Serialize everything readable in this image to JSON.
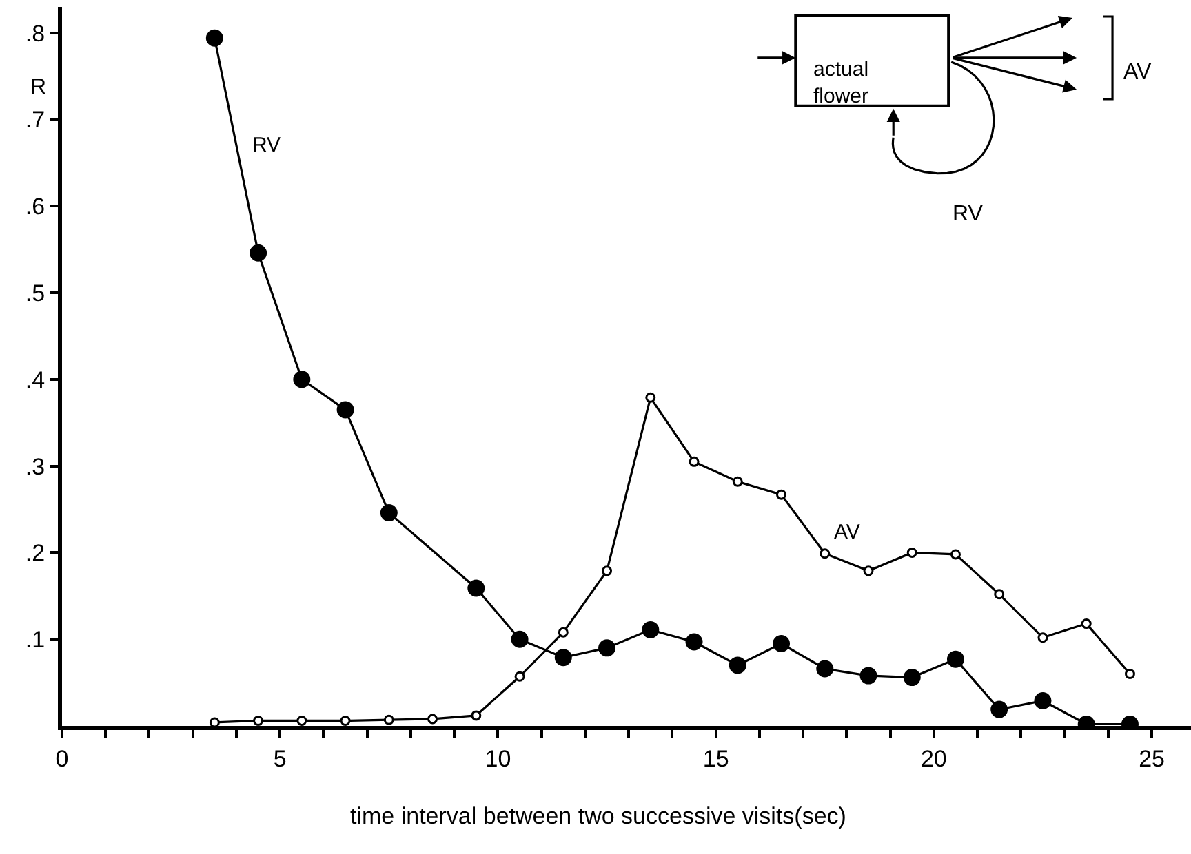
{
  "chart_data": {
    "type": "line",
    "xlabel": "time interval between two successive visits(sec)",
    "ylabel": "R",
    "xlim": [
      0,
      25.9
    ],
    "ylim": [
      0,
      0.83
    ],
    "xticks": [
      0,
      {
        "value": 1,
        "label": null
      },
      {
        "value": 2,
        "label": null
      },
      {
        "value": 3,
        "label": null
      },
      {
        "value": 4,
        "label": null
      },
      5,
      {
        "value": 6,
        "label": null
      },
      {
        "value": 7,
        "label": null
      },
      {
        "value": 8,
        "label": null
      },
      {
        "value": 9,
        "label": null
      },
      10,
      {
        "value": 11,
        "label": null
      },
      {
        "value": 12,
        "label": null
      },
      {
        "value": 13,
        "label": null
      },
      {
        "value": 14,
        "label": null
      },
      15,
      {
        "value": 16,
        "label": null
      },
      {
        "value": 17,
        "label": null
      },
      {
        "value": 18,
        "label": null
      },
      {
        "value": 19,
        "label": null
      },
      20,
      {
        "value": 21,
        "label": null
      },
      {
        "value": 22,
        "label": null
      },
      {
        "value": 23,
        "label": null
      },
      {
        "value": 24,
        "label": null
      },
      25
    ],
    "yticks": [
      {
        "value": 0.1,
        "label": ".1"
      },
      {
        "value": 0.2,
        "label": ".2"
      },
      {
        "value": 0.3,
        "label": ".3"
      },
      {
        "value": 0.4,
        "label": ".4"
      },
      {
        "value": 0.5,
        "label": ".5"
      },
      {
        "value": 0.6,
        "label": ".6"
      },
      {
        "value": 0.7,
        "label": ".7"
      },
      {
        "value": 0.8,
        "label": ".8"
      }
    ],
    "grid": false,
    "legend": false,
    "line_style": "solid",
    "series": [
      {
        "name": "RV",
        "color": "#000000",
        "marker": "circle",
        "x": [
          3.5,
          4.5,
          5.5,
          6.5,
          7.5,
          9.5,
          10.5,
          11.5,
          12.5,
          13.5,
          14.5,
          15.5,
          16.5,
          17.5,
          18.5,
          19.5,
          20.5,
          21.5,
          22.5,
          23.5,
          24.5
        ],
        "values": [
          0.794,
          0.546,
          0.4,
          0.365,
          0.246,
          0.159,
          0.1,
          0.079,
          0.09,
          0.111,
          0.097,
          0.07,
          0.095,
          0.066,
          0.058,
          0.056,
          0.077,
          0.019,
          0.029,
          0.002,
          0.002
        ]
      },
      {
        "name": "AV",
        "color": "#000000",
        "marker": "circle-open",
        "x": [
          3.5,
          4.5,
          5.5,
          6.5,
          7.5,
          8.5,
          9.5,
          10.5,
          11.5,
          12.5,
          13.5,
          14.5,
          15.5,
          16.5,
          17.5,
          18.5,
          19.5,
          20.5,
          21.5,
          22.5,
          23.5,
          24.5
        ],
        "values": [
          0.004,
          0.006,
          0.006,
          0.006,
          0.007,
          0.008,
          0.012,
          0.057,
          0.108,
          0.179,
          0.379,
          0.305,
          0.282,
          0.267,
          0.199,
          0.179,
          0.2,
          0.198,
          0.152,
          0.102,
          0.118,
          0.06
        ]
      }
    ],
    "annotations": [
      "actual flower",
      "AV",
      "RV"
    ]
  }
}
